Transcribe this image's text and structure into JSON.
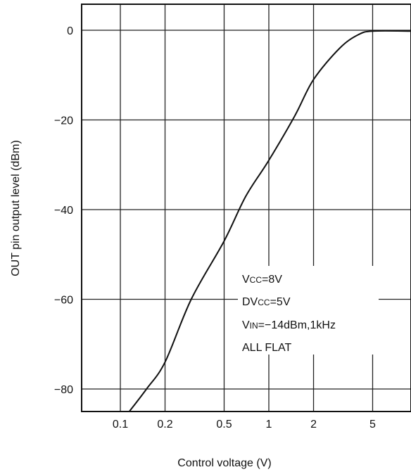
{
  "chart_data": {
    "type": "line",
    "title": "",
    "xlabel": "Control voltage (V)",
    "ylabel": "OUT pin output level (dBm)",
    "x_scale": "log",
    "xlim": [
      0.07,
      9
    ],
    "ylim": [
      -85,
      5
    ],
    "x_ticks": [
      {
        "value": 0.1,
        "label": "0.1"
      },
      {
        "value": 0.2,
        "label": "0.2"
      },
      {
        "value": 0.5,
        "label": "0.5"
      },
      {
        "value": 1,
        "label": "1"
      },
      {
        "value": 2,
        "label": "2"
      },
      {
        "value": 5,
        "label": "5"
      }
    ],
    "y_ticks": [
      {
        "value": 0,
        "label": "0"
      },
      {
        "value": -20,
        "label": "−20"
      },
      {
        "value": -40,
        "label": "−40"
      },
      {
        "value": -60,
        "label": "−60"
      },
      {
        "value": -80,
        "label": "−80"
      }
    ],
    "grid": true,
    "series": [
      {
        "values": [
          {
            "x": 0.115,
            "y": -85
          },
          {
            "x": 0.15,
            "y": -80
          },
          {
            "x": 0.2,
            "y": -74
          },
          {
            "x": 0.3,
            "y": -60
          },
          {
            "x": 0.5,
            "y": -47
          },
          {
            "x": 0.7,
            "y": -37
          },
          {
            "x": 1.0,
            "y": -29
          },
          {
            "x": 1.5,
            "y": -19
          },
          {
            "x": 2.0,
            "y": -11
          },
          {
            "x": 3.0,
            "y": -4
          },
          {
            "x": 4.0,
            "y": -1
          },
          {
            "x": 5.0,
            "y": -0.2
          },
          {
            "x": 9.0,
            "y": -0.2
          }
        ]
      }
    ],
    "annotations": [
      {
        "lines": [
          {
            "parts": [
              {
                "text": "V",
                "sub": false
              },
              {
                "text": "CC",
                "sub": true
              },
              {
                "text": "=8V",
                "sub": false
              }
            ]
          },
          {
            "parts": [
              {
                "text": "DV",
                "sub": false
              },
              {
                "text": "CC",
                "sub": true
              },
              {
                "text": "=5V",
                "sub": false
              }
            ]
          },
          {
            "parts": [
              {
                "text": "V",
                "sub": false
              },
              {
                "text": "IN",
                "sub": true
              },
              {
                "text": "=−14dBm,1kHz",
                "sub": false
              }
            ]
          },
          {
            "parts": [
              {
                "text": "ALL  FLAT",
                "sub": false
              }
            ]
          }
        ]
      }
    ]
  }
}
